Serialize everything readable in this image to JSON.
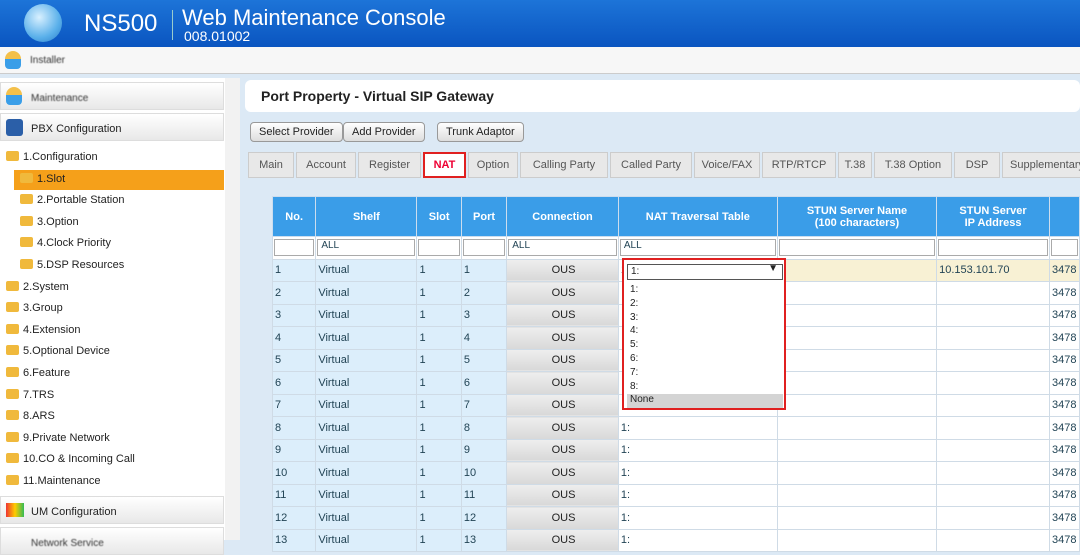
{
  "header": {
    "model": "NS500",
    "title": "Web Maintenance Console",
    "version": "008.01002"
  },
  "user_bar": {
    "label": "Installer"
  },
  "sidebar": {
    "top_button": "Maintenance",
    "pbx": "PBX Configuration",
    "items": [
      {
        "label": "1.Configuration",
        "indent": 0
      },
      {
        "label": "1.Slot",
        "indent": 1,
        "selected": true
      },
      {
        "label": "2.Portable Station",
        "indent": 1
      },
      {
        "label": "3.Option",
        "indent": 1
      },
      {
        "label": "4.Clock Priority",
        "indent": 1
      },
      {
        "label": "5.DSP Resources",
        "indent": 1
      },
      {
        "label": "2.System",
        "indent": 0
      },
      {
        "label": "3.Group",
        "indent": 0
      },
      {
        "label": "4.Extension",
        "indent": 0
      },
      {
        "label": "5.Optional Device",
        "indent": 0
      },
      {
        "label": "6.Feature",
        "indent": 0
      },
      {
        "label": "7.TRS",
        "indent": 0
      },
      {
        "label": "8.ARS",
        "indent": 0
      },
      {
        "label": "9.Private Network",
        "indent": 0
      },
      {
        "label": "10.CO & Incoming Call",
        "indent": 0
      },
      {
        "label": "11.Maintenance",
        "indent": 0
      }
    ],
    "um": "UM Configuration",
    "network": "Network Service"
  },
  "page": {
    "title": "Port Property - Virtual SIP Gateway",
    "buttons": [
      "Select Provider",
      "Add Provider",
      "Trunk Adaptor"
    ],
    "tabs": [
      "Main",
      "Account",
      "Register",
      "NAT",
      "Option",
      "Calling Party",
      "Called Party",
      "Voice/FAX",
      "RTP/RTCP",
      "T.38",
      "T.38 Option",
      "DSP",
      "Supplementary"
    ],
    "active_tab": "NAT"
  },
  "table": {
    "headers": [
      "No.",
      "Shelf",
      "Slot",
      "Port",
      "Connection",
      "NAT Traversal Table",
      "STUN Server Name\n(100 characters)",
      "STUN Server\nIP Address",
      ""
    ],
    "filters": {
      "shelf": "ALL",
      "connection": "ALL",
      "nat": "ALL"
    },
    "rows": [
      [
        "1",
        "Virtual",
        "1",
        "1",
        "OUS",
        "1:",
        "",
        "10.153.101.70",
        "3478"
      ],
      [
        "2",
        "Virtual",
        "1",
        "2",
        "OUS",
        "",
        "",
        "",
        "3478"
      ],
      [
        "3",
        "Virtual",
        "1",
        "3",
        "OUS",
        "",
        "",
        "",
        "3478"
      ],
      [
        "4",
        "Virtual",
        "1",
        "4",
        "OUS",
        "",
        "",
        "",
        "3478"
      ],
      [
        "5",
        "Virtual",
        "1",
        "5",
        "OUS",
        "",
        "",
        "",
        "3478"
      ],
      [
        "6",
        "Virtual",
        "1",
        "6",
        "OUS",
        "",
        "",
        "",
        "3478"
      ],
      [
        "7",
        "Virtual",
        "1",
        "7",
        "OUS",
        "",
        "",
        "",
        "3478"
      ],
      [
        "8",
        "Virtual",
        "1",
        "8",
        "OUS",
        "1:",
        "",
        "",
        "3478"
      ],
      [
        "9",
        "Virtual",
        "1",
        "9",
        "OUS",
        "1:",
        "",
        "",
        "3478"
      ],
      [
        "10",
        "Virtual",
        "1",
        "10",
        "OUS",
        "1:",
        "",
        "",
        "3478"
      ],
      [
        "11",
        "Virtual",
        "1",
        "11",
        "OUS",
        "1:",
        "",
        "",
        "3478"
      ],
      [
        "12",
        "Virtual",
        "1",
        "12",
        "OUS",
        "1:",
        "",
        "",
        "3478"
      ],
      [
        "13",
        "Virtual",
        "1",
        "13",
        "OUS",
        "1:",
        "",
        "",
        "3478"
      ]
    ]
  },
  "dropdown": {
    "selected": "1:",
    "options": [
      "1:",
      "2:",
      "3:",
      "4:",
      "5:",
      "6:",
      "7:",
      "8:",
      "None"
    ],
    "highlighted": "None"
  }
}
